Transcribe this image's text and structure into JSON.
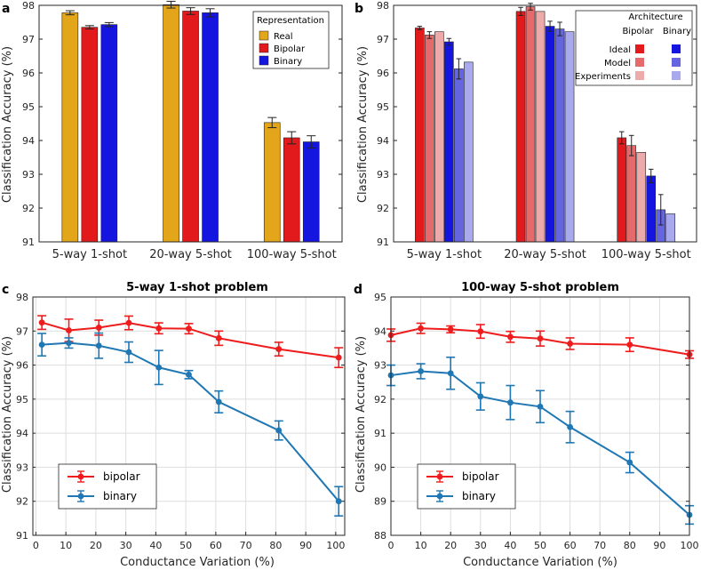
{
  "chart_data": [
    {
      "panel": "a",
      "type": "bar",
      "ylabel": "Classification Accuracy (%)",
      "ylim": [
        91,
        98
      ],
      "yticks": [
        91,
        92,
        93,
        94,
        95,
        96,
        97,
        98
      ],
      "categories": [
        "5-way  1-shot",
        "20-way  5-shot",
        "100-way  5-shot"
      ],
      "legend_title": "Representation",
      "legend_position": "top-right",
      "series": [
        {
          "name": "Real",
          "color": "#E3A61B",
          "values": [
            97.78,
            98.02,
            94.53
          ],
          "errors": [
            0.06,
            0.1,
            0.15
          ]
        },
        {
          "name": "Bipolar",
          "color": "#E31A1C",
          "values": [
            97.35,
            97.83,
            94.08
          ],
          "errors": [
            0.05,
            0.1,
            0.18
          ]
        },
        {
          "name": "Binary",
          "color": "#1515E0",
          "values": [
            97.43,
            97.78,
            93.96
          ],
          "errors": [
            0.06,
            0.12,
            0.18
          ]
        }
      ]
    },
    {
      "panel": "b",
      "type": "bar",
      "ylabel": "Classification Accuracy (%)",
      "ylim": [
        91,
        98
      ],
      "yticks": [
        91,
        92,
        93,
        94,
        95,
        96,
        97,
        98
      ],
      "categories": [
        "5-way  1-shot",
        "20-way  5-shot",
        "100-way  5-shot"
      ],
      "legend_title": "Architecture",
      "legend_columns": [
        "Bipolar",
        "Binary"
      ],
      "legend_rows": [
        "Ideal",
        "Model",
        "Experiments"
      ],
      "legend_position": "top-right",
      "series": [
        {
          "name": "Ideal",
          "group": "Bipolar",
          "color": "#E31A1C",
          "values": [
            97.33,
            97.82,
            94.08
          ],
          "errors": [
            0.05,
            0.12,
            0.18
          ]
        },
        {
          "name": "Model",
          "group": "Bipolar",
          "color": "#E56A6C",
          "values": [
            97.12,
            97.96,
            93.85
          ],
          "errors": [
            0.1,
            0.1,
            0.3
          ]
        },
        {
          "name": "Experiments",
          "group": "Bipolar",
          "color": "#EDAAAA",
          "values": [
            97.22,
            97.82,
            93.65
          ],
          "errors": [
            0,
            0,
            0
          ]
        },
        {
          "name": "Ideal",
          "group": "Binary",
          "color": "#1515E0",
          "values": [
            96.92,
            97.38,
            92.95
          ],
          "errors": [
            0.1,
            0.15,
            0.2
          ]
        },
        {
          "name": "Model",
          "group": "Binary",
          "color": "#6565E0",
          "values": [
            96.12,
            97.3,
            91.95
          ],
          "errors": [
            0.3,
            0.2,
            0.45
          ]
        },
        {
          "name": "Experiments",
          "group": "Binary",
          "color": "#A9A9EE",
          "values": [
            96.32,
            97.22,
            91.83
          ],
          "errors": [
            0,
            0,
            0
          ]
        }
      ]
    },
    {
      "panel": "c",
      "type": "line",
      "title": "5-way 1-shot problem",
      "xlabel": "Conductance Variation (%)",
      "ylabel": "Classification Accuracy (%)",
      "xlim": [
        -1,
        103
      ],
      "ylim": [
        91,
        98
      ],
      "xticks": [
        0,
        10,
        20,
        30,
        40,
        50,
        60,
        70,
        80,
        90,
        100
      ],
      "yticks": [
        91,
        92,
        93,
        94,
        95,
        96,
        97,
        98
      ],
      "grid": true,
      "legend_position": "bottom-left",
      "series": [
        {
          "name": "bipolar",
          "color": "#EE1C1C",
          "x": [
            2,
            11,
            21,
            31,
            41,
            51,
            61,
            81,
            101
          ],
          "y": [
            97.25,
            97.02,
            97.1,
            97.24,
            97.08,
            97.07,
            96.79,
            96.47,
            96.22
          ],
          "err": [
            0.2,
            0.33,
            0.22,
            0.2,
            0.16,
            0.15,
            0.21,
            0.2,
            0.29
          ]
        },
        {
          "name": "binary",
          "color": "#1F77B4",
          "x": [
            2,
            11,
            21,
            31,
            41,
            51,
            61,
            81,
            101
          ],
          "y": [
            96.6,
            96.65,
            96.57,
            96.38,
            95.93,
            95.72,
            94.92,
            94.08,
            92.0
          ],
          "err": [
            0.33,
            0.15,
            0.37,
            0.3,
            0.5,
            0.12,
            0.32,
            0.28,
            0.43
          ]
        }
      ]
    },
    {
      "panel": "d",
      "type": "line",
      "title": "100-way 5-shot problem",
      "xlabel": "Conductance Variation (%)",
      "ylabel": "Classification Accuracy (%)",
      "xlim": [
        0,
        100
      ],
      "ylim": [
        88,
        95
      ],
      "xticks": [
        0,
        10,
        20,
        30,
        40,
        50,
        60,
        70,
        80,
        90,
        100
      ],
      "yticks": [
        88,
        89,
        90,
        91,
        92,
        93,
        94,
        95
      ],
      "grid": true,
      "legend_position": "bottom-left",
      "series": [
        {
          "name": "bipolar",
          "color": "#EE1C1C",
          "x": [
            0,
            10,
            20,
            30,
            40,
            50,
            60,
            80,
            100
          ],
          "y": [
            93.88,
            94.08,
            94.05,
            93.99,
            93.83,
            93.78,
            93.63,
            93.6,
            93.31
          ],
          "err": [
            0.18,
            0.15,
            0.1,
            0.2,
            0.16,
            0.22,
            0.17,
            0.2,
            0.11
          ]
        },
        {
          "name": "binary",
          "color": "#1F77B4",
          "x": [
            0,
            10,
            20,
            30,
            40,
            50,
            60,
            80,
            100
          ],
          "y": [
            92.7,
            92.82,
            92.76,
            92.08,
            91.9,
            91.78,
            91.18,
            90.14,
            88.6
          ],
          "err": [
            0.3,
            0.22,
            0.47,
            0.4,
            0.5,
            0.47,
            0.46,
            0.3,
            0.27
          ]
        }
      ]
    }
  ]
}
